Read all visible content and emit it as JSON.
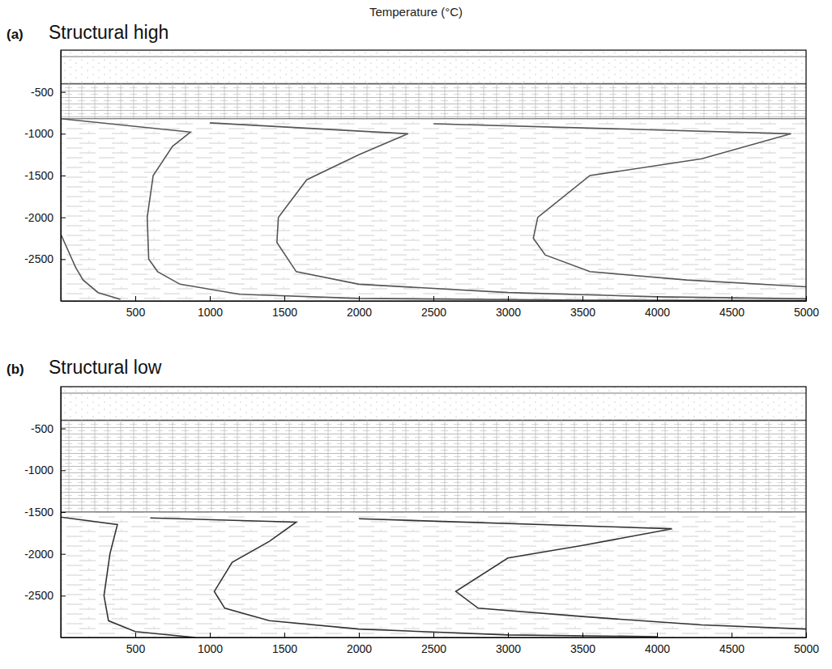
{
  "title": "Temperature (°C)",
  "chart_data": [
    {
      "type": "line",
      "panel_label": "(a)",
      "title": "Structural high",
      "xlim": [
        0,
        5000
      ],
      "xticks": [
        500,
        1000,
        1500,
        2000,
        2500,
        3000,
        3500,
        4000,
        4500,
        5000
      ],
      "ylim": [
        -3000,
        0
      ],
      "yticks": [
        -500,
        -1000,
        -1500,
        -2000,
        -2500
      ],
      "layers": [
        {
          "top": 0,
          "bottom": -400
        },
        {
          "top": -400,
          "bottom": -820
        },
        {
          "top": -820,
          "bottom": -3000
        }
      ],
      "series": [
        {
          "color": "#555555",
          "x": [
            0,
            50,
            100,
            150,
            250,
            400
          ],
          "values": [
            -2200,
            -2400,
            -2600,
            -2750,
            -2900,
            -2980
          ]
        },
        {
          "color": "#555555",
          "x": [
            0,
            870,
            750,
            620,
            580,
            590,
            650,
            800,
            1200,
            2000,
            3500,
            5000
          ],
          "values": [
            -820,
            -980,
            -1150,
            -1500,
            -2000,
            -2500,
            -2650,
            -2800,
            -2920,
            -2970,
            -2990,
            -2995
          ]
        },
        {
          "color": "#555555",
          "x": [
            1000,
            2330,
            2000,
            1650,
            1460,
            1450,
            1580,
            2000,
            3000,
            4000,
            5000
          ],
          "values": [
            -870,
            -1000,
            -1250,
            -1550,
            -2000,
            -2300,
            -2650,
            -2800,
            -2900,
            -2950,
            -2975
          ]
        },
        {
          "color": "#555555",
          "x": [
            2500,
            4900,
            4300,
            3550,
            3200,
            3170,
            3250,
            3550,
            4200,
            5000
          ],
          "values": [
            -880,
            -1000,
            -1300,
            -1500,
            -2000,
            -2250,
            -2450,
            -2650,
            -2750,
            -2830
          ]
        }
      ]
    },
    {
      "type": "line",
      "panel_label": "(b)",
      "title": "Structural low",
      "xlim": [
        0,
        5000
      ],
      "xticks": [
        500,
        1000,
        1500,
        2000,
        2500,
        3000,
        3500,
        4000,
        4500,
        5000
      ],
      "ylim": [
        -3000,
        0
      ],
      "yticks": [
        -500,
        -1000,
        -1500,
        -2000,
        -2500
      ],
      "layers": [
        {
          "top": 0,
          "bottom": -400
        },
        {
          "top": -400,
          "bottom": -1500
        },
        {
          "top": -1500,
          "bottom": -3000
        }
      ],
      "series": [
        {
          "color": "#333333",
          "x": [
            0,
            380,
            330,
            290,
            320,
            500,
            900
          ],
          "values": [
            -1560,
            -1650,
            -2000,
            -2500,
            -2800,
            -2930,
            -3000
          ]
        },
        {
          "color": "#333333",
          "x": [
            600,
            1580,
            1400,
            1150,
            1030,
            1100,
            1400,
            2000,
            3000,
            4000
          ],
          "values": [
            -1570,
            -1620,
            -1850,
            -2100,
            -2450,
            -2650,
            -2800,
            -2900,
            -2970,
            -2990
          ]
        },
        {
          "color": "#333333",
          "x": [
            2000,
            4100,
            3500,
            3000,
            2650,
            2800,
            3500,
            4300,
            5000
          ],
          "values": [
            -1580,
            -1700,
            -1900,
            -2050,
            -2450,
            -2650,
            -2750,
            -2850,
            -2900
          ]
        }
      ]
    }
  ]
}
